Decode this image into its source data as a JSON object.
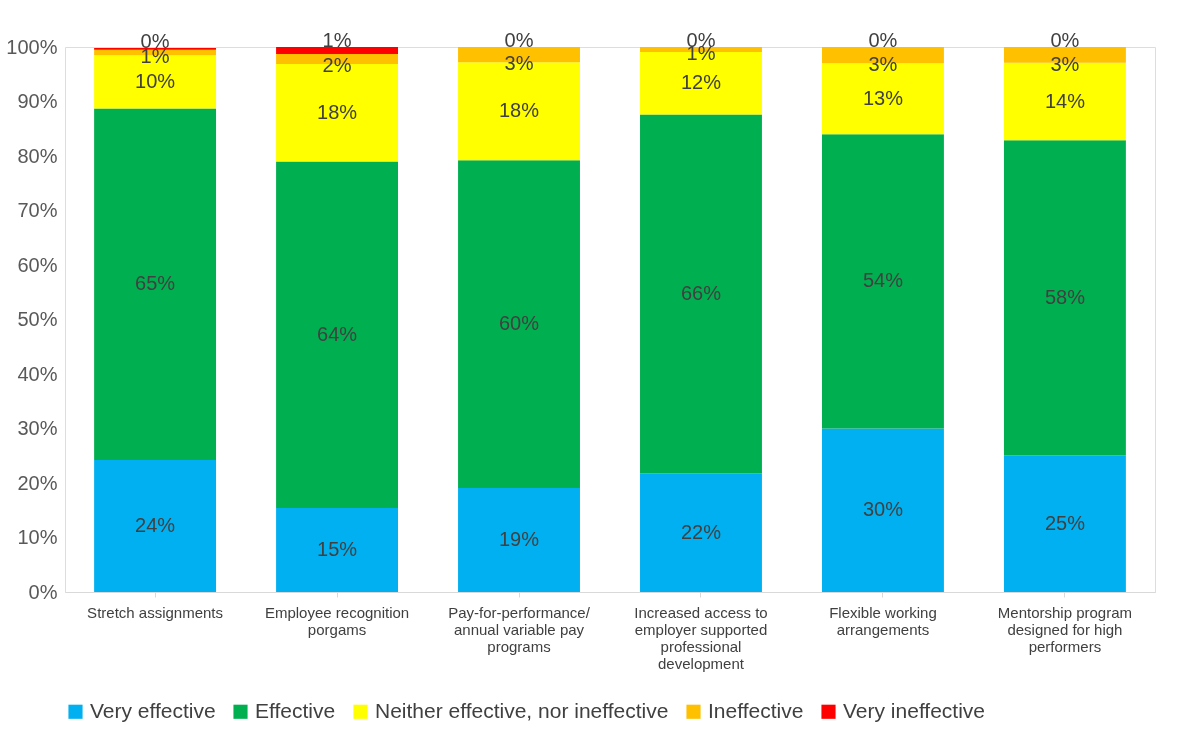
{
  "chart_data": {
    "type": "bar",
    "stacked": true,
    "categories": [
      "Stretch assignments",
      "Employee recognition porgams",
      "Pay-for-performance/ annual variable pay programs",
      "Increased access to employer supported professional development",
      "Flexible working arrangements",
      "Mentorship program designed for high performers"
    ],
    "series": [
      {
        "name": "Very effective",
        "color": "#00b0f0",
        "values": [
          24.2,
          15.4,
          19.1,
          21.8,
          30.0,
          25.1
        ],
        "value_labels": [
          "24%",
          "15%",
          "19%",
          "22%",
          "30%",
          "25%"
        ]
      },
      {
        "name": "Effective",
        "color": "#00b050",
        "values": [
          64.5,
          63.6,
          60.1,
          65.8,
          54.0,
          57.8
        ],
        "value_labels": [
          "65%",
          "64%",
          "60%",
          "66%",
          "54%",
          "58%"
        ]
      },
      {
        "name": "Neither effective, nor ineffective",
        "color": "#ffff00",
        "values": [
          9.8,
          17.9,
          18.0,
          11.5,
          13.0,
          14.2
        ],
        "value_labels": [
          "10%",
          "18%",
          "18%",
          "12%",
          "13%",
          "14%"
        ]
      },
      {
        "name": "Ineffective",
        "color": "#ffc000",
        "values": [
          1.0,
          1.8,
          2.8,
          0.9,
          3.0,
          2.9
        ],
        "value_labels": [
          "1%",
          "2%",
          "3%",
          "1%",
          "3%",
          "3%"
        ]
      },
      {
        "name": "Very ineffective",
        "color": "#ff0000",
        "values": [
          0.3,
          1.3,
          0,
          0,
          0,
          0
        ],
        "value_labels": [
          "0%",
          "1%",
          "0%",
          "0%",
          "0%",
          "0%"
        ]
      }
    ],
    "ylim": [
      0,
      100
    ],
    "yticks": [
      {
        "value": 0,
        "label": "0%"
      },
      {
        "value": 10,
        "label": "10%"
      },
      {
        "value": 20,
        "label": "20%"
      },
      {
        "value": 30,
        "label": "30%"
      },
      {
        "value": 40,
        "label": "40%"
      },
      {
        "value": 50,
        "label": "50%"
      },
      {
        "value": 60,
        "label": "60%"
      },
      {
        "value": 70,
        "label": "70%"
      },
      {
        "value": 80,
        "label": "80%"
      },
      {
        "value": 90,
        "label": "90%"
      },
      {
        "value": 100,
        "label": "100%"
      }
    ],
    "grid": false,
    "legend": "bottom"
  }
}
